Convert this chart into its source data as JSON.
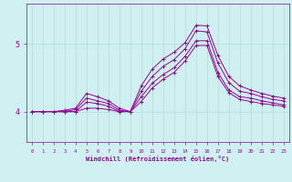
{
  "background_color": "#cff0f0",
  "line_color": "#990099",
  "grid_color": "#aadddd",
  "xlabel": "Windchill (Refroidissement éolien,°C)",
  "ylabel_ticks": [
    4,
    5
  ],
  "xlim": [
    -0.5,
    23.5
  ],
  "ylim": [
    3.55,
    5.6
  ],
  "xticks": [
    0,
    1,
    2,
    3,
    4,
    5,
    6,
    7,
    8,
    9,
    10,
    11,
    12,
    13,
    14,
    15,
    16,
    17,
    18,
    19,
    20,
    21,
    22,
    23
  ],
  "series": [
    [
      4.0,
      4.0,
      4.0,
      4.02,
      4.05,
      4.27,
      4.22,
      4.16,
      4.05,
      4.0,
      4.38,
      4.63,
      4.78,
      4.88,
      5.02,
      5.28,
      5.27,
      4.83,
      4.52,
      4.38,
      4.32,
      4.27,
      4.23,
      4.2
    ],
    [
      4.0,
      4.0,
      4.0,
      4.0,
      4.0,
      4.14,
      4.12,
      4.08,
      4.0,
      4.0,
      4.22,
      4.42,
      4.55,
      4.65,
      4.82,
      5.05,
      5.05,
      4.58,
      4.32,
      4.22,
      4.2,
      4.16,
      4.13,
      4.1
    ],
    [
      4.0,
      4.0,
      4.0,
      4.0,
      4.03,
      4.2,
      4.16,
      4.12,
      4.02,
      4.0,
      4.3,
      4.52,
      4.67,
      4.77,
      4.93,
      5.2,
      5.18,
      4.72,
      4.43,
      4.3,
      4.27,
      4.22,
      4.18,
      4.16
    ],
    [
      4.0,
      4.0,
      4.0,
      4.0,
      4.0,
      4.05,
      4.05,
      4.03,
      4.0,
      4.0,
      4.15,
      4.35,
      4.48,
      4.58,
      4.75,
      4.98,
      4.98,
      4.52,
      4.28,
      4.18,
      4.15,
      4.12,
      4.1,
      4.08
    ]
  ]
}
